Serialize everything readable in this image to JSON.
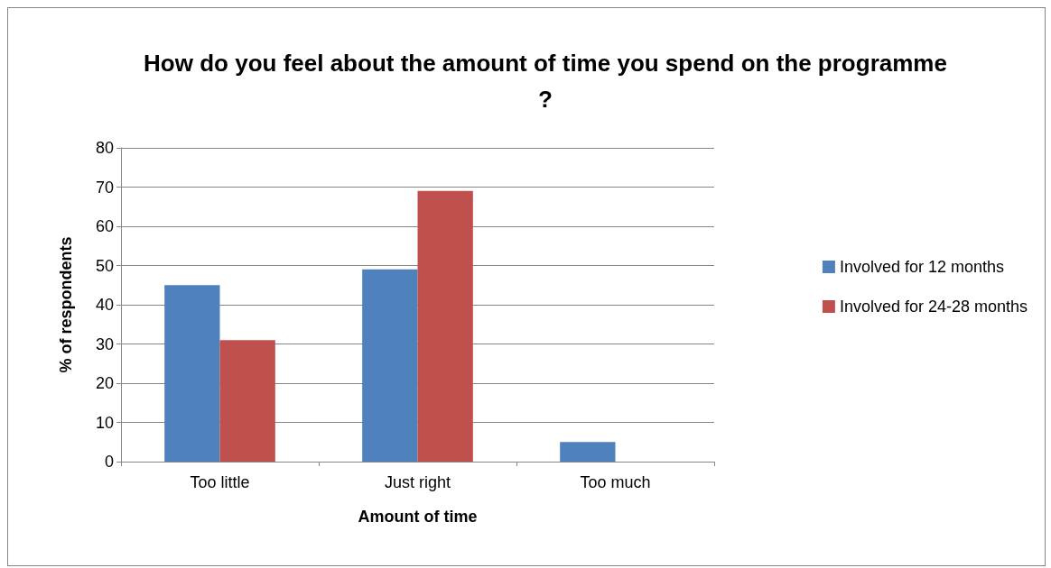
{
  "chart_data": {
    "type": "bar",
    "title": "How do you feel about the amount of time you spend on the programme?",
    "xlabel": "Amount of time",
    "ylabel": "% of respondents",
    "categories": [
      "Too little",
      "Just right",
      "Too much"
    ],
    "series": [
      {
        "name": "Involved for 12 months",
        "color": "#4f81bd",
        "values": [
          45,
          49,
          5
        ]
      },
      {
        "name": "Involved for 24-28 months",
        "color": "#c0504d",
        "values": [
          31,
          69,
          0
        ]
      }
    ],
    "ylim": [
      0,
      80
    ],
    "yticks": [
      0,
      10,
      20,
      30,
      40,
      50,
      60,
      70,
      80
    ],
    "grid": "y",
    "legend": "right"
  }
}
